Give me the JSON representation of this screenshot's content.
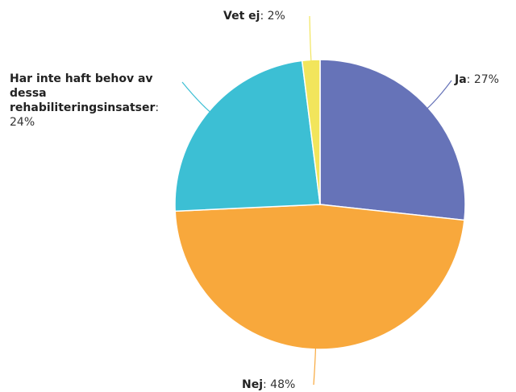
{
  "chart_data": {
    "type": "pie",
    "categories": [
      "Ja",
      "Nej",
      "Har inte haft behov av dessa rehabiliteringsinsatser",
      "Vet ej"
    ],
    "values": [
      27,
      48,
      24,
      2
    ],
    "value_labels": [
      ": 27%",
      ": 48%",
      ": 24%",
      ": 2%"
    ],
    "colors": [
      "#6673b8",
      "#f8a83c",
      "#3cbfd4",
      "#f2e55c"
    ]
  }
}
